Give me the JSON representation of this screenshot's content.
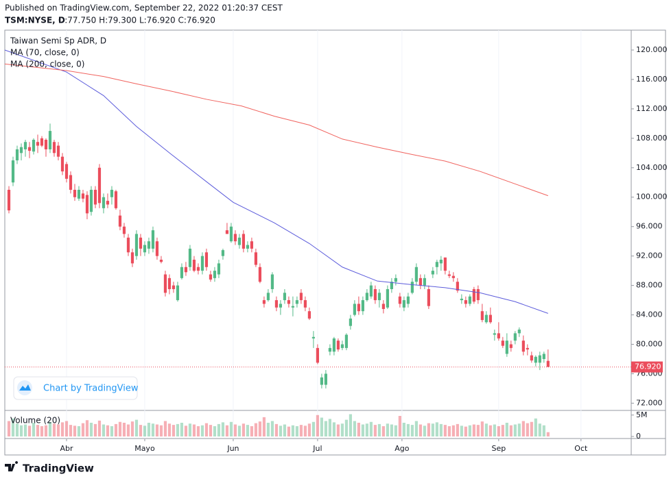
{
  "header": {
    "published": "Published on TradingView.com, September 22, 2022 01:20:37 CEST",
    "symbol": "TSM:NYSE, D",
    "ohlc": "O:77.750 H:79.300 L:76.920 C:76.920"
  },
  "watermark": "Chart by TradingView",
  "logo": "TradingView",
  "chart_data": {
    "type": "candlestick",
    "title": "Taiwan Semi Sp ADR, D",
    "colors": {
      "up": "#53b987",
      "down": "#eb4d5c"
    },
    "xlim": [
      -1,
      151.2
    ],
    "xticks": [
      {
        "value": 14,
        "label": "Abr"
      },
      {
        "value": 33,
        "label": "Mayo"
      },
      {
        "value": 54.5,
        "label": "Jun"
      },
      {
        "value": 75,
        "label": "Jul"
      },
      {
        "value": 95.5,
        "label": "Ago"
      },
      {
        "value": 119,
        "label": "Sep"
      },
      {
        "value": 139,
        "label": "Oct"
      }
    ],
    "ylim": [
      71.2,
      122.7
    ],
    "yticks": [
      {
        "value": 72,
        "label": "72.000"
      },
      {
        "value": 76,
        "label": "76.000"
      },
      {
        "value": 80,
        "label": "80.000"
      },
      {
        "value": 84,
        "label": "84.000"
      },
      {
        "value": 88,
        "label": "88.000"
      },
      {
        "value": 92,
        "label": "92.000"
      },
      {
        "value": 96,
        "label": "96.000"
      },
      {
        "value": 100,
        "label": "100.000"
      },
      {
        "value": 104,
        "label": "104.000"
      },
      {
        "value": 108,
        "label": "108.000"
      },
      {
        "value": 112,
        "label": "112.000"
      },
      {
        "value": 116,
        "label": "116.000"
      },
      {
        "value": 120,
        "label": "120.000"
      }
    ],
    "grid": true,
    "last_label": "76.920",
    "candles": [
      [
        101,
        101.5,
        97.8,
        98.2
      ],
      [
        102,
        105.5,
        101.5,
        105
      ],
      [
        105,
        107,
        104.5,
        106.5
      ],
      [
        106,
        107.3,
        105,
        106.8
      ],
      [
        106.5,
        107.8,
        105.5,
        107.5
      ],
      [
        106.8,
        107.5,
        105.3,
        106.3
      ],
      [
        106.2,
        108,
        105.8,
        107.8
      ],
      [
        107.5,
        108.5,
        106,
        107
      ],
      [
        108,
        108.3,
        106.8,
        107
      ],
      [
        107.8,
        108,
        105.5,
        106.5
      ],
      [
        106.5,
        110,
        106,
        109
      ],
      [
        107.5,
        107.8,
        105.5,
        106
      ],
      [
        107,
        107.5,
        105,
        105.5
      ],
      [
        105.5,
        106,
        103,
        103.5
      ],
      [
        104.5,
        104.8,
        102,
        102.5
      ],
      [
        103,
        103.5,
        100.5,
        101
      ],
      [
        101,
        101.8,
        99.5,
        100
      ],
      [
        99.8,
        101.5,
        99.5,
        101
      ],
      [
        100.5,
        101,
        99.3,
        99.8
      ],
      [
        100.3,
        100.8,
        97,
        97.8
      ],
      [
        98,
        101.5,
        97.5,
        101
      ],
      [
        101,
        101.5,
        98.5,
        99
      ],
      [
        104,
        104.5,
        98.5,
        99.2
      ],
      [
        98.5,
        100.5,
        97.8,
        100
      ],
      [
        99.5,
        100.5,
        98.5,
        99
      ],
      [
        100,
        101.5,
        99,
        101
      ],
      [
        100.8,
        101,
        98.3,
        98.5
      ],
      [
        97.5,
        98.3,
        95.5,
        96
      ],
      [
        96,
        96.5,
        94.5,
        95
      ],
      [
        94.5,
        95,
        92,
        92.5
      ],
      [
        92.5,
        93,
        90.5,
        91
      ],
      [
        92,
        95.5,
        91.5,
        95
      ],
      [
        94.5,
        95,
        92,
        93
      ],
      [
        92.5,
        94,
        92,
        93.5
      ],
      [
        93,
        94.5,
        92.3,
        94
      ],
      [
        93,
        96,
        92.5,
        95.5
      ],
      [
        94,
        94.5,
        91.5,
        92
      ],
      [
        91.5,
        92,
        91,
        91.2
      ],
      [
        89.5,
        90,
        86.5,
        87
      ],
      [
        89,
        89.5,
        86.8,
        87.5
      ],
      [
        88,
        88.5,
        87,
        87.5
      ],
      [
        86,
        88.5,
        85.8,
        88
      ],
      [
        89,
        91,
        88.8,
        90.5
      ],
      [
        90.5,
        91.2,
        89.3,
        89.8
      ],
      [
        90.5,
        93.5,
        90,
        93
      ],
      [
        91.5,
        92,
        89.8,
        90
      ],
      [
        90.5,
        91,
        89.5,
        90
      ],
      [
        90,
        92.5,
        89.5,
        92
      ],
      [
        92.5,
        93,
        90,
        90.5
      ],
      [
        89.5,
        90,
        88.5,
        88.8
      ],
      [
        89,
        90.5,
        88.5,
        90
      ],
      [
        89.5,
        91.5,
        89,
        91
      ],
      [
        92,
        93,
        91.5,
        92.8
      ],
      [
        95.5,
        96.5,
        95,
        95
      ],
      [
        94,
        96.5,
        93.8,
        96
      ],
      [
        95,
        95.5,
        93.5,
        94
      ],
      [
        93.5,
        95,
        93,
        94.5
      ],
      [
        95,
        95.5,
        92.5,
        93
      ],
      [
        93,
        94,
        92.5,
        93.5
      ],
      [
        94,
        94.5,
        92.5,
        93
      ],
      [
        92.5,
        93,
        90.5,
        90.8
      ],
      [
        90.5,
        91,
        88.3,
        88.5
      ],
      [
        86,
        86.5,
        85,
        85.5
      ],
      [
        86,
        87.5,
        85.8,
        87
      ],
      [
        87.5,
        89.8,
        87,
        89.5
      ],
      [
        86,
        86.5,
        84.5,
        85
      ],
      [
        85,
        86,
        84,
        85.5
      ],
      [
        86,
        87.5,
        85.5,
        87
      ],
      [
        86,
        86.5,
        85,
        85.5
      ],
      [
        85,
        86.5,
        83.8,
        85.2
      ],
      [
        85.5,
        86.5,
        85,
        86
      ],
      [
        87,
        87.5,
        85.5,
        86
      ],
      [
        86,
        86.5,
        84.5,
        85
      ],
      [
        84.5,
        85,
        83.3,
        83.5
      ],
      [
        80.8,
        81.8,
        79.5,
        81
      ],
      [
        79.5,
        80,
        77.3,
        77.5
      ],
      [
        74.5,
        76,
        74,
        75.5
      ],
      [
        74.5,
        76.5,
        74,
        76
      ],
      [
        79,
        80,
        78.5,
        79.5
      ],
      [
        79,
        81,
        78.5,
        80.8
      ],
      [
        80.5,
        80.8,
        79,
        79.3
      ],
      [
        79.5,
        80.5,
        79.2,
        80
      ],
      [
        79.5,
        81.5,
        79.2,
        81.3
      ],
      [
        82.5,
        84,
        82,
        83.5
      ],
      [
        84,
        86,
        83.8,
        85.5
      ],
      [
        85.5,
        86.5,
        84,
        84.5
      ],
      [
        84.5,
        86.5,
        84,
        86
      ],
      [
        86,
        87.5,
        85.8,
        87
      ],
      [
        86.5,
        88.5,
        86.2,
        88
      ],
      [
        87.5,
        88,
        85.5,
        86
      ],
      [
        86,
        87.5,
        85,
        87
      ],
      [
        85.5,
        86,
        84.2,
        84.8
      ],
      [
        85,
        88,
        84.8,
        87.5
      ],
      [
        87.5,
        89,
        87,
        88.5
      ],
      [
        88.5,
        89.5,
        88,
        89
      ],
      [
        86.5,
        87,
        85,
        85.5
      ],
      [
        85,
        86.5,
        84.5,
        86
      ],
      [
        85.5,
        87,
        85,
        86.5
      ],
      [
        87,
        89,
        86.8,
        88.5
      ],
      [
        88.5,
        91,
        88,
        90.5
      ],
      [
        89,
        89.5,
        87.5,
        88
      ],
      [
        88,
        89.5,
        87.5,
        89
      ],
      [
        87.5,
        88,
        84.8,
        85.2
      ],
      [
        89.5,
        90.5,
        89,
        90
      ],
      [
        90.5,
        91.5,
        89.5,
        91.2
      ],
      [
        91,
        92,
        90,
        91.5
      ],
      [
        91.8,
        91.8,
        89.5,
        90
      ],
      [
        89.5,
        90,
        89,
        89.3
      ],
      [
        89.3,
        89.8,
        88.5,
        89
      ],
      [
        88.5,
        89,
        87,
        87.3
      ],
      [
        86,
        86.8,
        85.5,
        86.2
      ],
      [
        86,
        86.5,
        85,
        85.5
      ],
      [
        85.5,
        86.8,
        85.2,
        86.5
      ],
      [
        87.5,
        87.8,
        85.5,
        85.8
      ],
      [
        87.5,
        88,
        85.5,
        86
      ],
      [
        84.5,
        85.5,
        83,
        83.3
      ],
      [
        83,
        84.5,
        82.8,
        84
      ],
      [
        84,
        85,
        82.8,
        83
      ],
      [
        81.3,
        82,
        80.5,
        81.5
      ],
      [
        81.5,
        83,
        80.5,
        80.8
      ],
      [
        80.5,
        81,
        79.5,
        79.8
      ],
      [
        78.7,
        81.5,
        78.3,
        80.5
      ],
      [
        80,
        80.5,
        79,
        79.5
      ],
      [
        80.5,
        81.8,
        80,
        81.5
      ],
      [
        81.5,
        82.3,
        81,
        82
      ],
      [
        80.5,
        81.2,
        78.5,
        79
      ],
      [
        79.5,
        80,
        78.5,
        79.3
      ],
      [
        78.5,
        79,
        77.5,
        77.8
      ],
      [
        77.5,
        78.5,
        77,
        78.3
      ],
      [
        77.5,
        79,
        76.5,
        78.5
      ],
      [
        78,
        79,
        77.5,
        78.7
      ],
      [
        77.75,
        79.3,
        76.92,
        76.92
      ]
    ],
    "ma": [
      {
        "name": "MA (70, close, 0)",
        "color": "#5b5bdb",
        "x": [
          -1,
          14,
          23,
          31,
          39.5,
          48,
          54.5,
          64.5,
          73,
          81,
          89.5,
          98,
          106,
          114.5,
          123,
          131
        ],
        "values": [
          120,
          117,
          113.8,
          109.6,
          105.8,
          102.1,
          99.3,
          96.5,
          93.7,
          90.5,
          88.6,
          88.1,
          87.7,
          87,
          85.8,
          84.2
        ]
      },
      {
        "name": "MA (200, close, 0)",
        "color": "#f0625d",
        "x": [
          -1,
          14,
          23,
          31,
          39.5,
          48,
          56.5,
          64.5,
          73,
          81,
          89.5,
          98,
          106,
          114.5,
          123,
          131
        ],
        "values": [
          118.1,
          117.2,
          116.4,
          115.4,
          114.4,
          113.3,
          112.4,
          111,
          109.8,
          107.9,
          106.8,
          105.8,
          104.9,
          103.5,
          101.8,
          100.2
        ]
      }
    ],
    "volume": {
      "name": "Volume (20)",
      "ylim": [
        0,
        5.6
      ],
      "yticks": [
        0,
        {
          "value": 5,
          "label": "5M"
        }
      ],
      "values": [
        3.6,
        4.2,
        3.0,
        2.6,
        2.8,
        2.5,
        3.2,
        2.7,
        2.4,
        2.6,
        3.4,
        3.0,
        2.8,
        3.3,
        3.6,
        2.7,
        2.5,
        2.4,
        3.1,
        3.8,
        3.2,
        2.9,
        3.7,
        2.8,
        2.6,
        2.4,
        2.9,
        3.4,
        3.2,
        2.8,
        3.5,
        3.9,
        2.7,
        2.5,
        3.2,
        3.0,
        2.8,
        2.6,
        3.6,
        3.0,
        2.7,
        2.9,
        3.2,
        2.5,
        3.0,
        2.8,
        2.4,
        2.6,
        3.1,
        2.7,
        2.4,
        2.9,
        3.3,
        2.6,
        3.4,
        2.8,
        2.5,
        3.0,
        2.7,
        2.4,
        3.1,
        3.5,
        4.5,
        3.2,
        3.6,
        2.9,
        2.5,
        2.8,
        2.3,
        2.6,
        2.4,
        2.7,
        2.5,
        3.0,
        3.4,
        5.0,
        4.4,
        3.6,
        4.1,
        3.3,
        2.8,
        3.0,
        3.9,
        5.2,
        3.6,
        3.2,
        2.8,
        3.0,
        3.4,
        2.7,
        2.9,
        2.4,
        3.0,
        2.8,
        2.6,
        4.8,
        3.2,
        2.9,
        2.7,
        3.6,
        2.8,
        2.5,
        3.1,
        3.0,
        3.3,
        2.9,
        2.7,
        2.4,
        2.6,
        2.9,
        2.5,
        2.3,
        2.6,
        2.8,
        2.7,
        3.5,
        3.0,
        2.6,
        2.8,
        2.4,
        2.7,
        3.2,
        2.6,
        2.8,
        3.0,
        3.6,
        3.1,
        3.4,
        4.2,
        3.0,
        2.6,
        1.0
      ]
    }
  }
}
